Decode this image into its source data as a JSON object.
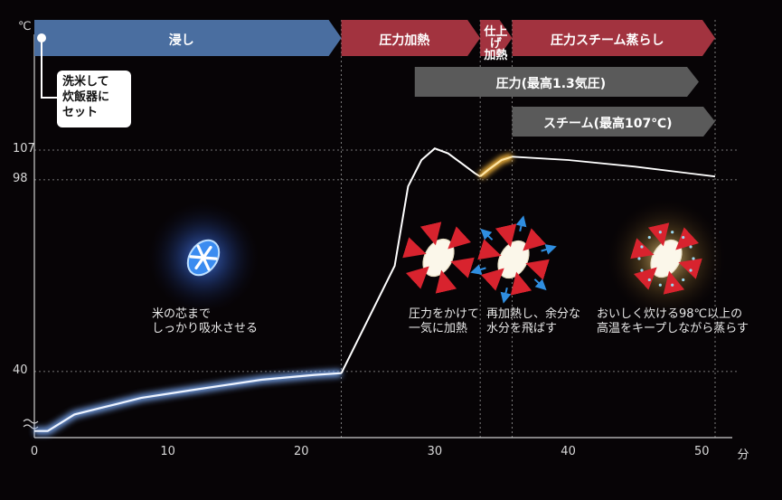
{
  "unit_temp": "℃",
  "unit_time": "分",
  "y_axis": {
    "ticks": [
      40,
      98,
      107
    ],
    "range": [
      20,
      115
    ]
  },
  "x_axis": {
    "ticks": [
      0,
      10,
      20,
      30,
      40,
      50
    ],
    "range": [
      0,
      52
    ]
  },
  "phases": [
    {
      "label": "浸し",
      "start": 0,
      "end": 23,
      "color": "#4a6ea0"
    },
    {
      "label": "圧力加熱",
      "start": 23,
      "end": 33.4,
      "color": "#a2333f"
    },
    {
      "label": "仕上げ加熱",
      "start": 33.4,
      "end": 35.8,
      "color": "#a2333f"
    },
    {
      "label": "圧力スチーム蒸らし",
      "start": 35.8,
      "end": 51,
      "color": "#a2333f"
    }
  ],
  "sub_phases": [
    {
      "label": "圧力(最高1.3気圧)",
      "start": 28.5,
      "end": 51
    },
    {
      "label": "スチーム(最高107℃)",
      "start": 35.8,
      "end": 51
    }
  ],
  "note": "洗米して\n炊飯器に\nセット",
  "chart_data": {
    "type": "line",
    "x": [
      0,
      1,
      3,
      5,
      8,
      12,
      17,
      21,
      23,
      27,
      28,
      29,
      30,
      31,
      32,
      33,
      33.4,
      34,
      35,
      35.8,
      40,
      45,
      51
    ],
    "series": [
      {
        "values": [
          22,
          22,
          27,
          29,
          32,
          34.5,
          37.5,
          39,
          39.5,
          72,
          96,
          104,
          107.5,
          106,
          103,
          100,
          99,
          101,
          104,
          105,
          104,
          102,
          99
        ]
      }
    ],
    "xlim": [
      0,
      52
    ],
    "ylim": [
      20,
      115
    ]
  },
  "annotations": [
    {
      "text": "米の芯まで\nしっかり吸水させる"
    },
    {
      "text": "圧力をかけて\n一気に加熱"
    },
    {
      "text": "再加熱し、余分な\n水分を飛ばす"
    },
    {
      "text": "おいしく炊ける98℃以上の\n高温をキープしながら蒸らす"
    }
  ]
}
